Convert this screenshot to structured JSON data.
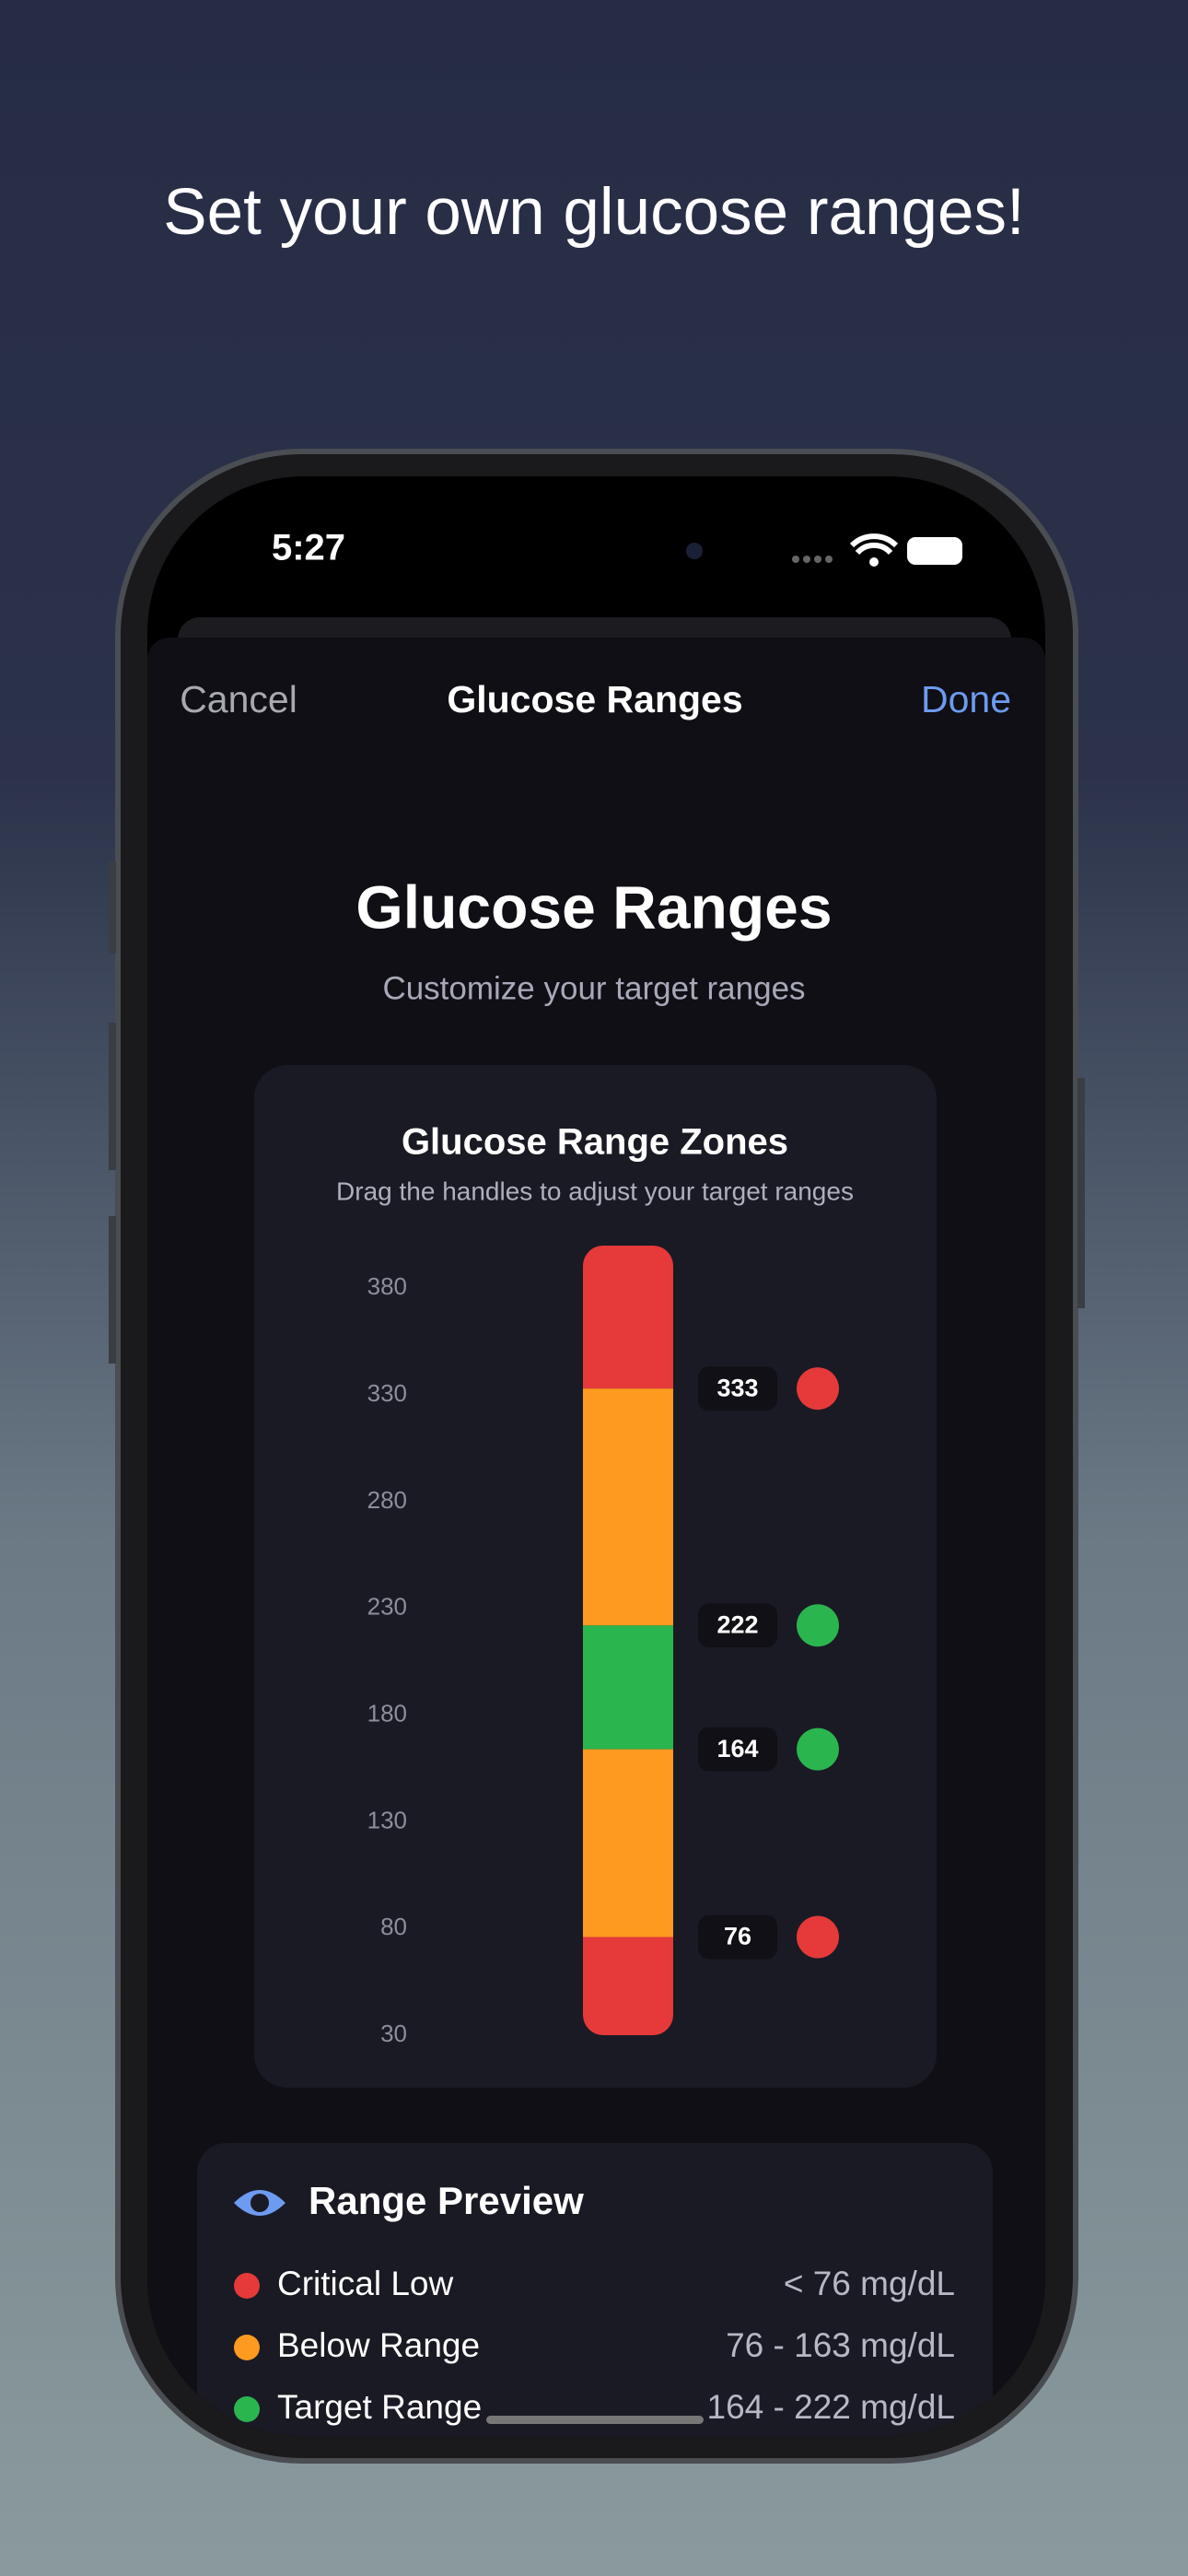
{
  "headline": "Set your own glucose ranges!",
  "status_bar": {
    "time": "5:27"
  },
  "nav": {
    "cancel": "Cancel",
    "title": "Glucose Ranges",
    "done": "Done"
  },
  "header": {
    "title": "Glucose Ranges",
    "subtitle": "Customize your target ranges"
  },
  "chart_data": {
    "type": "range-gauge",
    "title": "Glucose Range Zones",
    "subtitle": "Drag the handles to adjust your target ranges",
    "ylim": [
      30,
      400
    ],
    "yticks": [
      380,
      330,
      280,
      230,
      180,
      130,
      80,
      30
    ],
    "handles": [
      {
        "value": 333,
        "color": "#e5393a"
      },
      {
        "value": 222,
        "color": "#2ab54f"
      },
      {
        "value": 164,
        "color": "#2ab54f"
      },
      {
        "value": 76,
        "color": "#e5393a"
      }
    ],
    "zone_colors": [
      "#e5393a",
      "#fd9a1f",
      "#2ab54f",
      "#fd9a1f",
      "#e5393a"
    ]
  },
  "range_preview": {
    "title": "Range Preview",
    "rows": [
      {
        "label": "Critical Low",
        "range": "< 76 mg/dL",
        "color": "#e5393a"
      },
      {
        "label": "Below Range",
        "range": "76 - 163 mg/dL",
        "color": "#fd9a1f"
      },
      {
        "label": "Target Range",
        "range": "164 - 222 mg/dL",
        "color": "#2ab54f"
      }
    ]
  }
}
